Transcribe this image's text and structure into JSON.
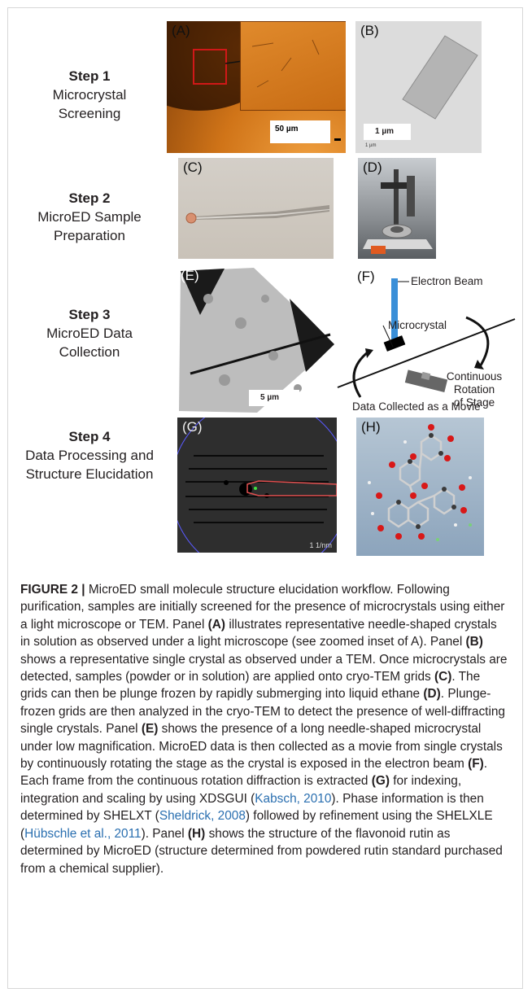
{
  "steps": [
    {
      "title": "Step 1",
      "lines": [
        "Microcrystal",
        "Screening"
      ]
    },
    {
      "title": "Step 2",
      "lines": [
        "MicroED Sample",
        "Preparation"
      ]
    },
    {
      "title": "Step 3",
      "lines": [
        "MicroED Data",
        "Collection"
      ]
    },
    {
      "title": "Step 4",
      "lines": [
        "Data Processing and",
        "Structure Elucidation"
      ]
    }
  ],
  "panels": {
    "A": {
      "label": "(A)",
      "scale": "50 µm"
    },
    "B": {
      "label": "(B)",
      "scale": "1 µm",
      "scale_small": "1 µm"
    },
    "C": {
      "label": "(C)"
    },
    "D": {
      "label": "(D)"
    },
    "E": {
      "label": "(E)",
      "scale": "5 µm"
    },
    "F": {
      "label": "(F)",
      "beam": "Electron Beam",
      "crystal": "Microcrystal",
      "rotation": [
        "Continuous Rotation",
        "of Stage"
      ],
      "movie": "Data Collected as a Movie"
    },
    "G": {
      "label": "(G)",
      "scale": "1 1/nm"
    },
    "H": {
      "label": "(H)"
    }
  },
  "caption": {
    "figure": "FIGURE 2 |",
    "s1": " MicroED small molecule structure elucidation workflow. Following purification, samples are initially screened for the presence of microcrystals using either a light microscope or TEM. Panel ",
    "bA": "(A)",
    "s2": " illustrates representative needle-shaped crystals in solution as observed under a light microscope (see zoomed inset of A). Panel ",
    "bB": "(B)",
    "s3": " shows a representative single crystal as observed under a TEM. Once microcrystals are detected, samples (powder or in solution) are applied onto cryo-TEM grids ",
    "bC": "(C)",
    "s4": ". The grids can then be plunge frozen by rapidly submerging into liquid ethane ",
    "bD": "(D)",
    "s5": ". Plunge-frozen grids are then analyzed in the cryo-TEM to detect the presence of well-diffracting single crystals. Panel ",
    "bE": "(E)",
    "s6": " shows the presence of a long needle-shaped microcrystal under low magnification. MicroED data is then collected as a movie from single crystals by continuously rotating the stage as the crystal is exposed in the electron beam ",
    "bF": "(F)",
    "s7": ". Each frame from the continuous rotation diffraction is extracted ",
    "bG": "(G)",
    "s8": " for indexing, integration and scaling by using XDSGUI (",
    "r1": "Kabsch, 2010",
    "s9": "). Phase information is then determined by SHELXT (",
    "r2": "Sheldrick, 2008",
    "s10": ") followed by refinement using the SHELXLE (",
    "r3": "Hübschle et al., 2011",
    "s11": "). Panel ",
    "bH": "(H)",
    "s12": " shows the structure of the flavonoid rutin as determined by MicroED (structure determined from powdered rutin standard purchased from a chemical supplier)."
  }
}
